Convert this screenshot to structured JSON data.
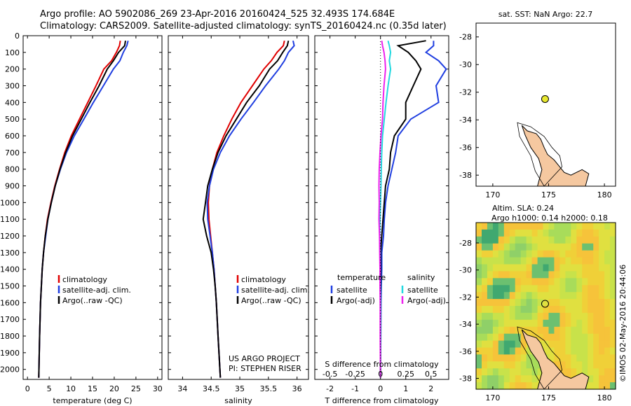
{
  "header": {
    "line1": "Argo profile: AO 5902086_269 23-Apr-2016 20160424_525 32.493S 174.684E",
    "line2": "Climatology: CARS2009. Satellite-adjusted climatology: synTS_20160424.nc (0.35d later)"
  },
  "side_label": "©IMOS 02-May-2016 20:44:06",
  "depth_axis": {
    "ticks": [
      0,
      100,
      200,
      300,
      400,
      500,
      600,
      700,
      800,
      900,
      1000,
      1100,
      1200,
      1300,
      1400,
      1500,
      1600,
      1700,
      1800,
      1900,
      2000
    ],
    "ylim": [
      0,
      2060
    ]
  },
  "colors": {
    "climatology": "#e00000",
    "satellite": "#1f3ee0",
    "argo": "#000000",
    "salinity_sat": "#22d8e0",
    "salinity_argo": "#ee22ee",
    "land": "#f5c8a0"
  },
  "chart_data": [
    {
      "type": "line",
      "xlabel": "temperature (deg C)",
      "xlim": [
        -1,
        31
      ],
      "xticks": [
        0,
        5,
        10,
        15,
        20,
        25,
        30
      ],
      "legend": [
        "climatology",
        "satellite-adj. clim.",
        "Argo(..raw -QC)"
      ],
      "series": [
        {
          "name": "climatology",
          "x": [
            21.4,
            21.2,
            20.5,
            19.4,
            17.6,
            15.8,
            13.9,
            12.0,
            10.1,
            8.6,
            7.4,
            6.3,
            5.4,
            4.6,
            4.1,
            3.7,
            3.4,
            3.2,
            3.0,
            2.8,
            2.6
          ],
          "y": [
            30,
            60,
            100,
            150,
            200,
            300,
            400,
            500,
            600,
            700,
            800,
            900,
            1000,
            1100,
            1200,
            1300,
            1400,
            1500,
            1600,
            1800,
            2050
          ]
        },
        {
          "name": "satellite-adj. clim.",
          "x": [
            23.2,
            22.9,
            22.1,
            21.3,
            19.8,
            17.5,
            15.2,
            13.0,
            10.8,
            9.0,
            7.6,
            6.4,
            5.5,
            4.7,
            4.2,
            3.7,
            3.4,
            3.2,
            3.0,
            2.8,
            2.6
          ],
          "y": [
            30,
            60,
            100,
            150,
            200,
            300,
            400,
            500,
            600,
            700,
            800,
            900,
            1000,
            1100,
            1200,
            1300,
            1400,
            1500,
            1600,
            1800,
            2050
          ]
        },
        {
          "name": "Argo(..raw -QC)",
          "x": [
            22.6,
            22.4,
            21.0,
            19.8,
            18.4,
            16.5,
            14.4,
            12.4,
            10.4,
            8.8,
            7.5,
            6.4,
            5.5,
            4.7,
            4.1,
            3.7,
            3.4,
            3.2,
            3.0,
            2.8,
            2.6
          ],
          "y": [
            30,
            60,
            100,
            150,
            200,
            300,
            400,
            500,
            600,
            700,
            800,
            900,
            1000,
            1100,
            1200,
            1300,
            1400,
            1500,
            1600,
            1800,
            2050
          ]
        }
      ]
    },
    {
      "type": "line",
      "xlabel": "salinity",
      "xlim": [
        33.75,
        36.2
      ],
      "xticks": [
        34,
        34.5,
        35,
        35.5,
        36
      ],
      "legend": [
        "climatology",
        "satellite-adj. clim.",
        "Argo(..raw -QC)"
      ],
      "annotation": [
        "US ARGO PROJECT",
        "PI: STEPHEN RISER"
      ],
      "series": [
        {
          "name": "climatology",
          "x": [
            35.78,
            35.76,
            35.65,
            35.55,
            35.42,
            35.22,
            35.02,
            34.86,
            34.72,
            34.6,
            34.52,
            34.47,
            34.45,
            34.46,
            34.49,
            34.52,
            34.55,
            34.57,
            34.59,
            34.62,
            34.66
          ],
          "y": [
            30,
            60,
            100,
            150,
            200,
            300,
            400,
            500,
            600,
            700,
            800,
            900,
            1000,
            1100,
            1200,
            1300,
            1400,
            1500,
            1600,
            1800,
            2050
          ]
        },
        {
          "name": "satellite-adj. clim.",
          "x": [
            35.93,
            35.95,
            35.85,
            35.78,
            35.68,
            35.45,
            35.24,
            35.02,
            34.82,
            34.66,
            34.54,
            34.47,
            34.43,
            34.44,
            34.48,
            34.52,
            34.55,
            34.57,
            34.59,
            34.62,
            34.66
          ],
          "y": [
            30,
            60,
            100,
            150,
            200,
            300,
            400,
            500,
            600,
            700,
            800,
            900,
            1000,
            1100,
            1200,
            1300,
            1400,
            1500,
            1600,
            1800,
            2050
          ]
        },
        {
          "name": "Argo(..raw -QC)",
          "x": [
            35.85,
            35.83,
            35.75,
            35.66,
            35.52,
            35.34,
            35.12,
            34.94,
            34.76,
            34.62,
            34.52,
            34.44,
            34.4,
            34.36,
            34.42,
            34.5,
            34.54,
            34.57,
            34.59,
            34.62,
            34.66
          ],
          "y": [
            30,
            60,
            100,
            150,
            200,
            300,
            400,
            500,
            600,
            700,
            800,
            900,
            1000,
            1100,
            1200,
            1300,
            1400,
            1500,
            1600,
            1800,
            2050
          ]
        }
      ]
    },
    {
      "type": "line",
      "xlabel": "T difference from climatology",
      "xlabel_top": "S difference from climatology",
      "xlim": [
        -2.6,
        2.7
      ],
      "xticks": [
        -2,
        -1,
        0,
        1,
        2
      ],
      "xticks_top": [
        -0.5,
        -0.25,
        0,
        0.25,
        0.5
      ],
      "legend_title_t": "temperature",
      "legend_title_s": "salinity",
      "legend": [
        "satellite",
        "Argo(-adj)",
        "satellite",
        "Argo(-adj)"
      ],
      "series": [
        {
          "name": "T satellite",
          "x": [
            2.1,
            2.1,
            1.8,
            2.3,
            2.6,
            2.2,
            2.3,
            1.2,
            0.7,
            0.6,
            0.45,
            0.3,
            0.2,
            0.15,
            0.12,
            0.05,
            0.05,
            0.03,
            0.02,
            0.01,
            0.0
          ],
          "y": [
            30,
            60,
            100,
            150,
            200,
            300,
            400,
            500,
            600,
            700,
            800,
            900,
            1000,
            1100,
            1200,
            1300,
            1400,
            1500,
            1600,
            1800,
            2050
          ]
        },
        {
          "name": "T Argo(-adj)",
          "x": [
            1.8,
            0.7,
            1.1,
            1.4,
            1.6,
            1.3,
            1.0,
            1.0,
            0.55,
            0.4,
            0.35,
            0.2,
            0.15,
            0.1,
            0.05,
            0.0,
            0.0,
            0.0,
            0.0,
            0.0,
            0.0
          ],
          "y": [
            30,
            60,
            100,
            150,
            200,
            300,
            400,
            500,
            600,
            700,
            800,
            900,
            1000,
            1100,
            1200,
            1300,
            1400,
            1500,
            1600,
            1800,
            2050
          ]
        },
        {
          "name": "S satellite",
          "x": [
            0.3,
            0.35,
            0.4,
            0.35,
            0.4,
            0.3,
            0.22,
            0.15,
            0.08,
            0.05,
            0.03,
            0.02,
            0.0,
            -0.02,
            -0.03,
            -0.02,
            -0.02,
            -0.01,
            0.0,
            0.0,
            0.0
          ],
          "y": [
            30,
            60,
            100,
            150,
            200,
            300,
            400,
            500,
            600,
            700,
            800,
            900,
            1000,
            1100,
            1200,
            1300,
            1400,
            1500,
            1600,
            1800,
            2050
          ]
        },
        {
          "name": "S Argo(-adj)",
          "x": [
            0.05,
            0.08,
            0.14,
            0.18,
            0.2,
            0.14,
            0.1,
            0.08,
            0.02,
            -0.02,
            -0.05,
            -0.06,
            -0.05,
            -0.06,
            -0.04,
            -0.03,
            -0.02,
            -0.02,
            -0.01,
            -0.01,
            0.0
          ],
          "y": [
            30,
            60,
            100,
            150,
            200,
            300,
            400,
            500,
            600,
            700,
            800,
            900,
            1000,
            1100,
            1200,
            1300,
            1400,
            1500,
            1600,
            1800,
            2050
          ]
        }
      ]
    },
    {
      "type": "scatter",
      "title": "sat. SST: NaN Argo: 22.7",
      "xlim": [
        168.5,
        181
      ],
      "ylim": [
        -38.8,
        -27
      ],
      "xticks": [
        170,
        175,
        180
      ],
      "yticks": [
        -38,
        -36,
        -34,
        -32,
        -30,
        -28
      ],
      "point": {
        "lon": 174.684,
        "lat": -32.493
      }
    },
    {
      "type": "heatmap",
      "title": "Altim. SLA: 0.24",
      "subtitle": "Argo h1000: 0.14 h2000: 0.18",
      "xlim": [
        168.5,
        181
      ],
      "ylim": [
        -38.8,
        -26.5
      ],
      "xticks": [
        170,
        175,
        180
      ],
      "yticks": [
        -38,
        -36,
        -34,
        -32,
        -30,
        -28
      ],
      "point": {
        "lon": 174.684,
        "lat": -32.493
      }
    }
  ]
}
